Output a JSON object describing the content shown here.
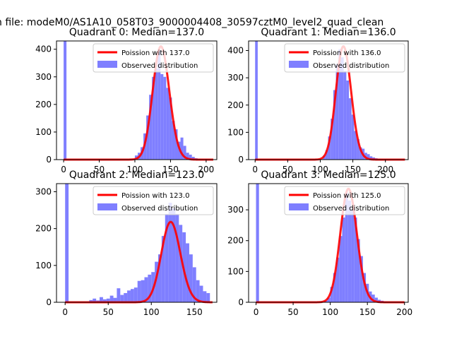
{
  "suptitle": "n file: modeM0/AS1A10_058T03_9000004408_30597cztM0_level2_quad_clean",
  "colors": {
    "hist": "#7f7fff",
    "fit": "#ff0000"
  },
  "chart_data": [
    {
      "type": "bar",
      "title": "Quadrant 0: Median=137.0",
      "grid": false,
      "legend_placement": "upper right",
      "xlim": [
        -10,
        215
      ],
      "ylim": [
        0,
        430
      ],
      "xticks": [
        0,
        50,
        100,
        150,
        200
      ],
      "yticks": [
        0,
        100,
        200,
        300,
        400
      ],
      "fit": {
        "name": "Poission with 137.0",
        "mean": 137.0,
        "peak": 410
      },
      "hist": {
        "name": "Observed distribution",
        "bin_width": 4,
        "bins": [
          [
            0,
            430
          ],
          [
            100,
            15
          ],
          [
            104,
            25
          ],
          [
            108,
            45
          ],
          [
            112,
            95
          ],
          [
            116,
            160
          ],
          [
            120,
            235
          ],
          [
            124,
            300
          ],
          [
            128,
            330
          ],
          [
            132,
            395
          ],
          [
            136,
            310
          ],
          [
            140,
            300
          ],
          [
            144,
            260
          ],
          [
            148,
            225
          ],
          [
            152,
            140
          ],
          [
            156,
            110
          ],
          [
            160,
            65
          ],
          [
            164,
            80
          ],
          [
            168,
            50
          ],
          [
            172,
            25
          ],
          [
            176,
            18
          ],
          [
            180,
            10
          ],
          [
            184,
            5
          ],
          [
            188,
            3
          ],
          [
            192,
            2
          ],
          [
            196,
            1
          ]
        ]
      }
    },
    {
      "type": "bar",
      "title": "Quadrant 1: Median=136.0",
      "grid": false,
      "legend_placement": "upper right",
      "xlim": [
        -10,
        235
      ],
      "ylim": [
        0,
        435
      ],
      "xticks": [
        0,
        50,
        100,
        150,
        200
      ],
      "yticks": [
        0,
        100,
        200,
        300,
        400
      ],
      "fit": {
        "name": "Poission with 136.0",
        "mean": 136.0,
        "peak": 415
      },
      "hist": {
        "name": "Observed distribution",
        "bin_width": 4,
        "bins": [
          [
            0,
            435
          ],
          [
            104,
            15
          ],
          [
            108,
            35
          ],
          [
            112,
            85
          ],
          [
            116,
            150
          ],
          [
            120,
            255
          ],
          [
            124,
            350
          ],
          [
            128,
            405
          ],
          [
            132,
            375
          ],
          [
            136,
            325
          ],
          [
            140,
            290
          ],
          [
            144,
            225
          ],
          [
            148,
            165
          ],
          [
            152,
            105
          ],
          [
            156,
            75
          ],
          [
            160,
            45
          ],
          [
            164,
            40
          ],
          [
            168,
            25
          ],
          [
            172,
            20
          ],
          [
            176,
            12
          ],
          [
            180,
            8
          ],
          [
            184,
            5
          ],
          [
            188,
            3
          ],
          [
            192,
            2
          ]
        ]
      }
    },
    {
      "type": "bar",
      "title": "Quadrant 2: Median=123.0",
      "grid": false,
      "legend_placement": "upper right",
      "xlim": [
        -10,
        176
      ],
      "ylim": [
        0,
        322
      ],
      "xticks": [
        0,
        50,
        100,
        150
      ],
      "yticks": [
        0,
        100,
        200,
        300
      ],
      "fit": {
        "name": "Poission with 123.0",
        "mean": 123.0,
        "peak": 218
      },
      "hist": {
        "name": "Observed distribution",
        "bin_width": 4,
        "bins": [
          [
            0,
            322
          ],
          [
            28,
            6
          ],
          [
            32,
            10
          ],
          [
            36,
            5
          ],
          [
            40,
            14
          ],
          [
            44,
            8
          ],
          [
            48,
            10
          ],
          [
            52,
            18
          ],
          [
            56,
            12
          ],
          [
            60,
            38
          ],
          [
            64,
            20
          ],
          [
            68,
            25
          ],
          [
            72,
            32
          ],
          [
            76,
            36
          ],
          [
            80,
            40
          ],
          [
            84,
            58
          ],
          [
            88,
            60
          ],
          [
            92,
            68
          ],
          [
            96,
            75
          ],
          [
            100,
            82
          ],
          [
            104,
            110
          ],
          [
            108,
            130
          ],
          [
            112,
            180
          ],
          [
            116,
            240
          ],
          [
            120,
            270
          ],
          [
            124,
            255
          ],
          [
            128,
            240
          ],
          [
            132,
            210
          ],
          [
            136,
            190
          ],
          [
            140,
            160
          ],
          [
            144,
            130
          ],
          [
            148,
            95
          ],
          [
            152,
            60
          ],
          [
            156,
            45
          ],
          [
            160,
            30
          ],
          [
            164,
            25
          ]
        ]
      }
    },
    {
      "type": "bar",
      "title": "Quadrant 3: Median=125.0",
      "grid": false,
      "legend_placement": "upper right",
      "xlim": [
        -10,
        205
      ],
      "ylim": [
        0,
        385
      ],
      "xticks": [
        0,
        50,
        100,
        150,
        200
      ],
      "yticks": [
        0,
        100,
        200,
        300
      ],
      "fit": {
        "name": "Poission with 125.0",
        "mean": 125.0,
        "peak": 368
      },
      "hist": {
        "name": "Observed distribution",
        "bin_width": 4,
        "bins": [
          [
            0,
            385
          ],
          [
            92,
            5
          ],
          [
            96,
            15
          ],
          [
            100,
            50
          ],
          [
            104,
            95
          ],
          [
            108,
            145
          ],
          [
            112,
            215
          ],
          [
            116,
            275
          ],
          [
            120,
            355
          ],
          [
            124,
            330
          ],
          [
            128,
            300
          ],
          [
            132,
            275
          ],
          [
            136,
            205
          ],
          [
            140,
            150
          ],
          [
            144,
            95
          ],
          [
            148,
            60
          ],
          [
            152,
            35
          ],
          [
            156,
            25
          ],
          [
            160,
            15
          ],
          [
            164,
            8
          ],
          [
            168,
            5
          ],
          [
            172,
            3
          ],
          [
            176,
            2
          ],
          [
            180,
            1
          ]
        ]
      }
    }
  ]
}
